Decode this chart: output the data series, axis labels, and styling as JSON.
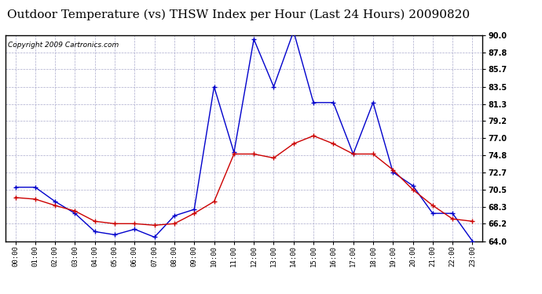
{
  "title": "Outdoor Temperature (vs) THSW Index per Hour (Last 24 Hours) 20090820",
  "copyright": "Copyright 2009 Cartronics.com",
  "hours": [
    "00:00",
    "01:00",
    "02:00",
    "03:00",
    "04:00",
    "05:00",
    "06:00",
    "07:00",
    "08:00",
    "09:00",
    "10:00",
    "11:00",
    "12:00",
    "13:00",
    "14:00",
    "15:00",
    "16:00",
    "17:00",
    "18:00",
    "19:00",
    "20:00",
    "21:00",
    "22:00",
    "23:00"
  ],
  "temp_red": [
    69.5,
    69.3,
    68.5,
    67.8,
    66.5,
    66.2,
    66.2,
    66.0,
    66.2,
    67.5,
    69.0,
    75.0,
    75.0,
    74.5,
    76.3,
    77.3,
    76.3,
    75.0,
    75.0,
    73.0,
    70.5,
    68.5,
    66.8,
    66.5
  ],
  "thsw_blue": [
    70.8,
    70.8,
    69.0,
    67.5,
    65.2,
    64.8,
    65.5,
    64.5,
    67.2,
    68.0,
    83.5,
    75.2,
    89.5,
    83.5,
    90.5,
    81.5,
    81.5,
    75.0,
    81.5,
    72.7,
    71.0,
    67.5,
    67.5,
    64.0
  ],
  "ylim_min": 64.0,
  "ylim_max": 90.0,
  "yticks": [
    64.0,
    66.2,
    68.3,
    70.5,
    72.7,
    74.8,
    77.0,
    79.2,
    81.3,
    83.5,
    85.7,
    87.8,
    90.0
  ],
  "red_color": "#cc0000",
  "blue_color": "#0000cc",
  "bg_color": "#ffffff",
  "grid_color": "#aaaacc",
  "title_fontsize": 11,
  "copyright_fontsize": 6.5
}
